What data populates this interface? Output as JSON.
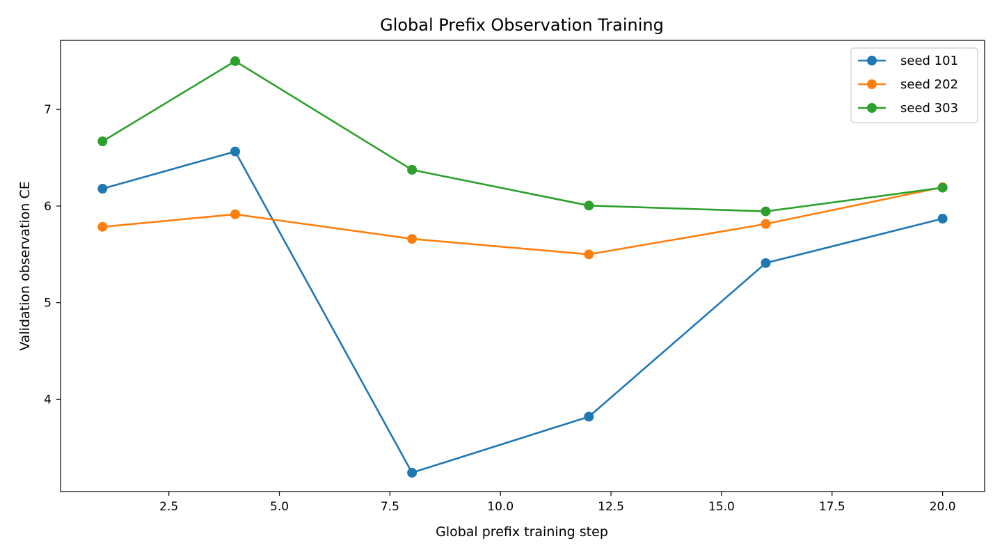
{
  "chart_data": {
    "type": "line",
    "title": "Global Prefix Observation Training",
    "xlabel": "Global prefix training step",
    "ylabel": "Validation observation CE",
    "x": [
      1,
      4,
      8,
      12,
      16,
      20
    ],
    "xlim": [
      0.05,
      20.95
    ],
    "ylim": [
      3.045,
      7.715
    ],
    "xticks": [
      2.5,
      5.0,
      7.5,
      10.0,
      12.5,
      15.0,
      17.5,
      20.0
    ],
    "xtick_labels": [
      "2.5",
      "5.0",
      "7.5",
      "10.0",
      "12.5",
      "15.0",
      "17.5",
      "20.0"
    ],
    "yticks": [
      4,
      5,
      6,
      7
    ],
    "ytick_labels": [
      "4",
      "5",
      "6",
      "7"
    ],
    "grid": false,
    "legend_position": "top-right",
    "series": [
      {
        "name": "seed 101",
        "color": "#1f77b4",
        "values": [
          6.18,
          6.565,
          3.24,
          3.82,
          5.41,
          5.87
        ]
      },
      {
        "name": "seed 202",
        "color": "#ff7f0e",
        "values": [
          5.785,
          5.915,
          5.66,
          5.5,
          5.815,
          6.195
        ]
      },
      {
        "name": "seed 303",
        "color": "#2ca02c",
        "values": [
          6.67,
          7.5,
          6.375,
          6.005,
          5.945,
          6.19
        ]
      }
    ]
  }
}
